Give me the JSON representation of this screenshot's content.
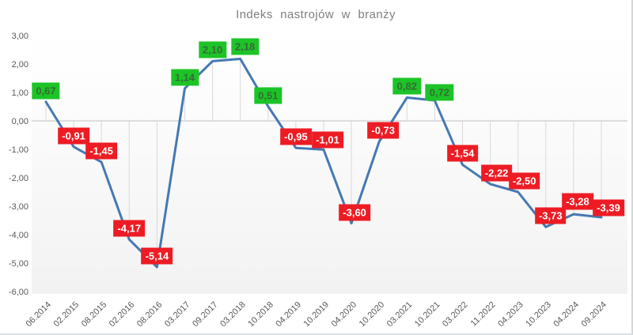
{
  "page": {
    "title": "Indeks nastrojów w branży"
  },
  "colors": {
    "line": "#4579b2",
    "positive_bg": "#1cc427",
    "positive_text": "#356b35",
    "negative_bg": "#ed1c24",
    "negative_text": "#ffffff",
    "axis_text": "#595959",
    "title_text": "#7f7f7f",
    "zero_line": "#bfbfbf",
    "drop_line": "#d9d9d9"
  },
  "chart_data": {
    "type": "line",
    "title": "Indeks nastrojów w branży",
    "xlabel": "",
    "ylabel": "",
    "legend": "none",
    "grid": "no horizontal gridlines; vertical drop lines from each point to the zero axis",
    "decimal_separator": ",",
    "x_tick_rotation_deg": 45,
    "ylim": [
      -6,
      3
    ],
    "categories": [
      "06.2014",
      "02.2015",
      "08.2015",
      "02.2016",
      "08.2016",
      "03.2017",
      "09.2017",
      "03.2018",
      "10.2018",
      "04.2019",
      "10.2019",
      "04.2020",
      "10.2020",
      "03.2021",
      "10.2021",
      "03.2022",
      "11.2022",
      "04.2023",
      "10.2023",
      "04.2024",
      "09.2024"
    ],
    "values": [
      0.67,
      -0.91,
      -1.45,
      -4.17,
      -5.14,
      1.14,
      2.1,
      2.18,
      0.51,
      -0.95,
      -1.01,
      -3.6,
      -0.73,
      0.82,
      0.72,
      -1.54,
      -2.22,
      -2.5,
      -3.73,
      -3.28,
      -3.39
    ],
    "point_labels": [
      "0,67",
      "-0,91",
      "-1,45",
      "-4,17",
      "-5,14",
      "1,14",
      "2,10",
      "2,18",
      "0,51",
      "-0,95",
      "-1,01",
      "-3,60",
      "-0,73",
      "0,82",
      "0,72",
      "-1,54",
      "-2,22",
      "-2,50",
      "-3,73",
      "-3,28",
      "-3,39"
    ],
    "y_ticks": [
      {
        "label": "3,00",
        "value": 3
      },
      {
        "label": "2,00",
        "value": 2
      },
      {
        "label": "1,00",
        "value": 1
      },
      {
        "label": "0,00",
        "value": 0
      },
      {
        "label": "-1,00",
        "value": -1
      },
      {
        "label": "-2,00",
        "value": -2
      },
      {
        "label": "-3,00",
        "value": -3
      },
      {
        "label": "-4,00",
        "value": -4
      },
      {
        "label": "-5,00",
        "value": -5
      },
      {
        "label": "-6,00",
        "value": -6
      }
    ]
  }
}
